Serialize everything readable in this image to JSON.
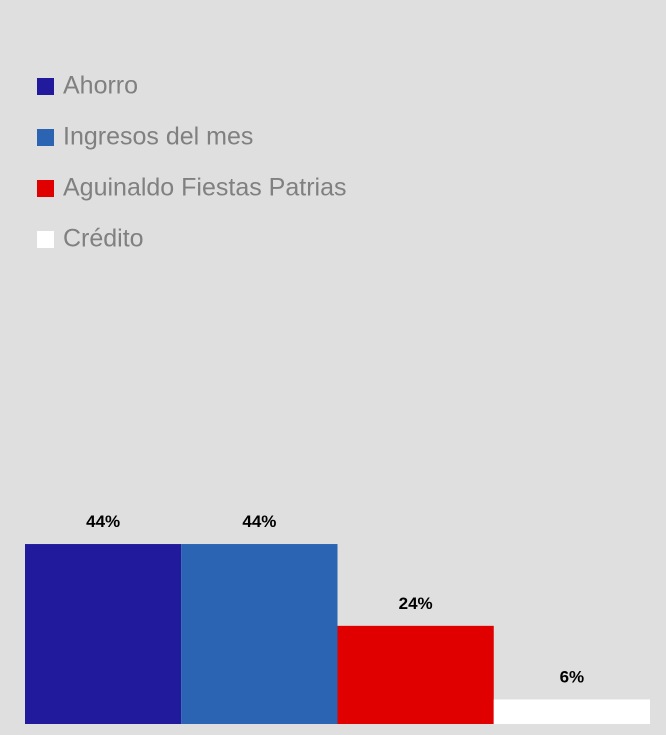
{
  "chart_data": {
    "type": "bar",
    "categories": [
      "Ahorro",
      "Ingresos del mes",
      "Aguinaldo Fiestas Patrias",
      "Crédito"
    ],
    "values": [
      44,
      44,
      24,
      6
    ],
    "value_labels": [
      "44%",
      "44%",
      "24%",
      "6%"
    ],
    "colors": [
      "#211a9c",
      "#2a64b2",
      "#e00000",
      "#ffffff"
    ],
    "legend": "top-left"
  }
}
